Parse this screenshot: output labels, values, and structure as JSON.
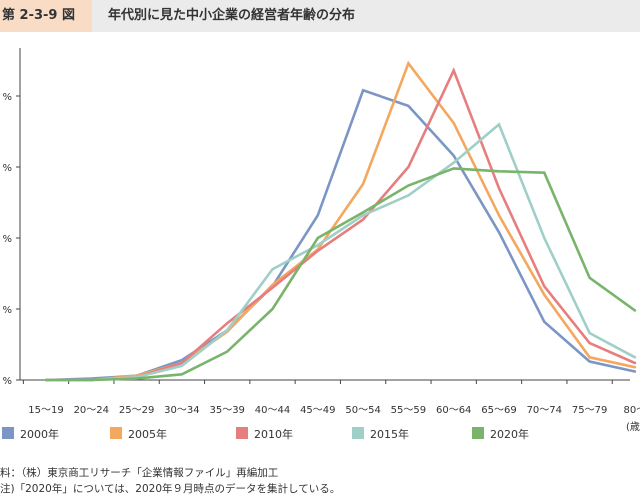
{
  "header": {
    "figure_number": "第 2-3-9 図",
    "title": "年代別に見た中小企業の経営者年齢の分布"
  },
  "chart_data": {
    "type": "line",
    "title": "年代別に見た中小企業の経営者年齢の分布",
    "xlabel": "",
    "ylabel": "",
    "categories": [
      "15〜19",
      "20〜24",
      "25〜29",
      "30〜34",
      "35〜39",
      "40〜44",
      "45〜49",
      "50〜54",
      "55〜59",
      "60〜64",
      "65〜69",
      "70〜74",
      "75〜79",
      "80〜"
    ],
    "y_tick_labels": [
      "%",
      "%",
      "%",
      "%",
      "%"
    ],
    "x_unit_fragment": "(歳",
    "ylim": [
      0,
      20
    ],
    "grid": false,
    "legend_position": "bottom",
    "series": [
      {
        "name": "2000年",
        "color": "#7b96c4",
        "values": [
          0.0,
          0.1,
          0.3,
          1.4,
          3.5,
          6.6,
          11.6,
          20.4,
          19.3,
          15.8,
          10.4,
          4.1,
          1.3,
          0.6
        ]
      },
      {
        "name": "2005年",
        "color": "#f4a75e",
        "values": [
          0.0,
          0.0,
          0.3,
          1.2,
          3.4,
          6.7,
          9.2,
          13.8,
          22.3,
          18.1,
          11.6,
          6.0,
          1.6,
          0.9
        ]
      },
      {
        "name": "2010年",
        "color": "#e77e7e",
        "values": [
          0.0,
          0.0,
          0.2,
          1.2,
          4.0,
          6.5,
          9.1,
          11.3,
          15.0,
          21.8,
          13.5,
          6.6,
          2.6,
          1.2
        ]
      },
      {
        "name": "2015年",
        "color": "#9fcfc6",
        "values": [
          0.0,
          0.0,
          0.2,
          1.0,
          3.5,
          7.8,
          9.5,
          11.6,
          13.0,
          15.3,
          18.0,
          10.0,
          3.3,
          1.6
        ]
      },
      {
        "name": "2020年",
        "color": "#79b46b",
        "values": [
          0.0,
          0.0,
          0.1,
          0.4,
          2.0,
          5.0,
          10.0,
          11.8,
          13.7,
          14.9,
          14.7,
          14.6,
          7.2,
          4.9
        ]
      }
    ]
  },
  "notes": {
    "source": "料：（株）東京商工リサーチ「企業情報ファイル」再編加工",
    "note": "注)「2020年」については、2020年９月時点のデータを集計している。"
  }
}
